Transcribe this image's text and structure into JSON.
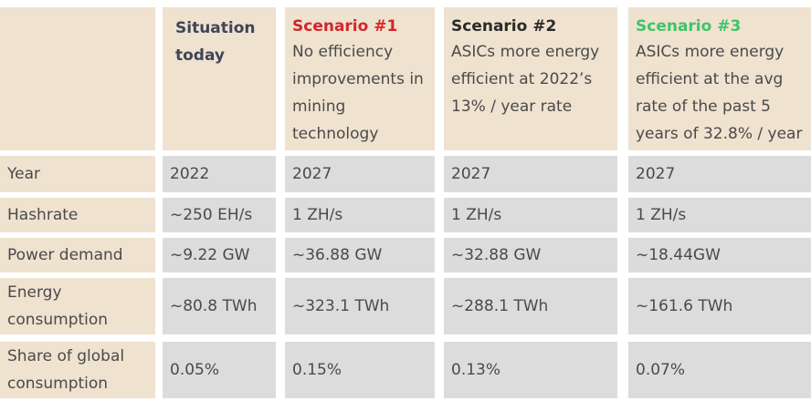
{
  "colors": {
    "header_beige": "#efe2cf",
    "cell_grey": "#dcdcdc",
    "situation_title": "#3f4559",
    "scenario1_title": "#d3262b",
    "scenario2_title": "#2a2a2a",
    "scenario3_title": "#3fc46a"
  },
  "table": {
    "headers": [
      {
        "title": "",
        "subtitle": ""
      },
      {
        "title": "Situation today",
        "subtitle": ""
      },
      {
        "title": "Scenario #1",
        "subtitle": "No efficiency improvements in mining technology"
      },
      {
        "title": "Scenario #2",
        "subtitle": "ASICs more energy efficient at 2022’s 13% / year rate"
      },
      {
        "title": "Scenario #3",
        "subtitle": "ASICs more energy efficient at the avg rate of the past 5 years of 32.8% / year"
      }
    ],
    "rows": [
      {
        "label": "Year",
        "values": [
          "2022",
          "2027",
          "2027",
          "2027"
        ]
      },
      {
        "label": "Hashrate",
        "values": [
          "~250 EH/s",
          "1 ZH/s",
          "1 ZH/s",
          "1 ZH/s"
        ]
      },
      {
        "label": "Power demand",
        "values": [
          "~9.22 GW",
          "~36.88 GW",
          "~32.88 GW",
          "~18.44GW"
        ]
      },
      {
        "label": "Energy consumption",
        "values": [
          "~80.8 TWh",
          "~323.1 TWh",
          "~288.1 TWh",
          "~161.6 TWh"
        ]
      },
      {
        "label": "Share of global consumption",
        "values": [
          "0.05%",
          "0.15%",
          "0.13%",
          "0.07%"
        ]
      }
    ]
  }
}
